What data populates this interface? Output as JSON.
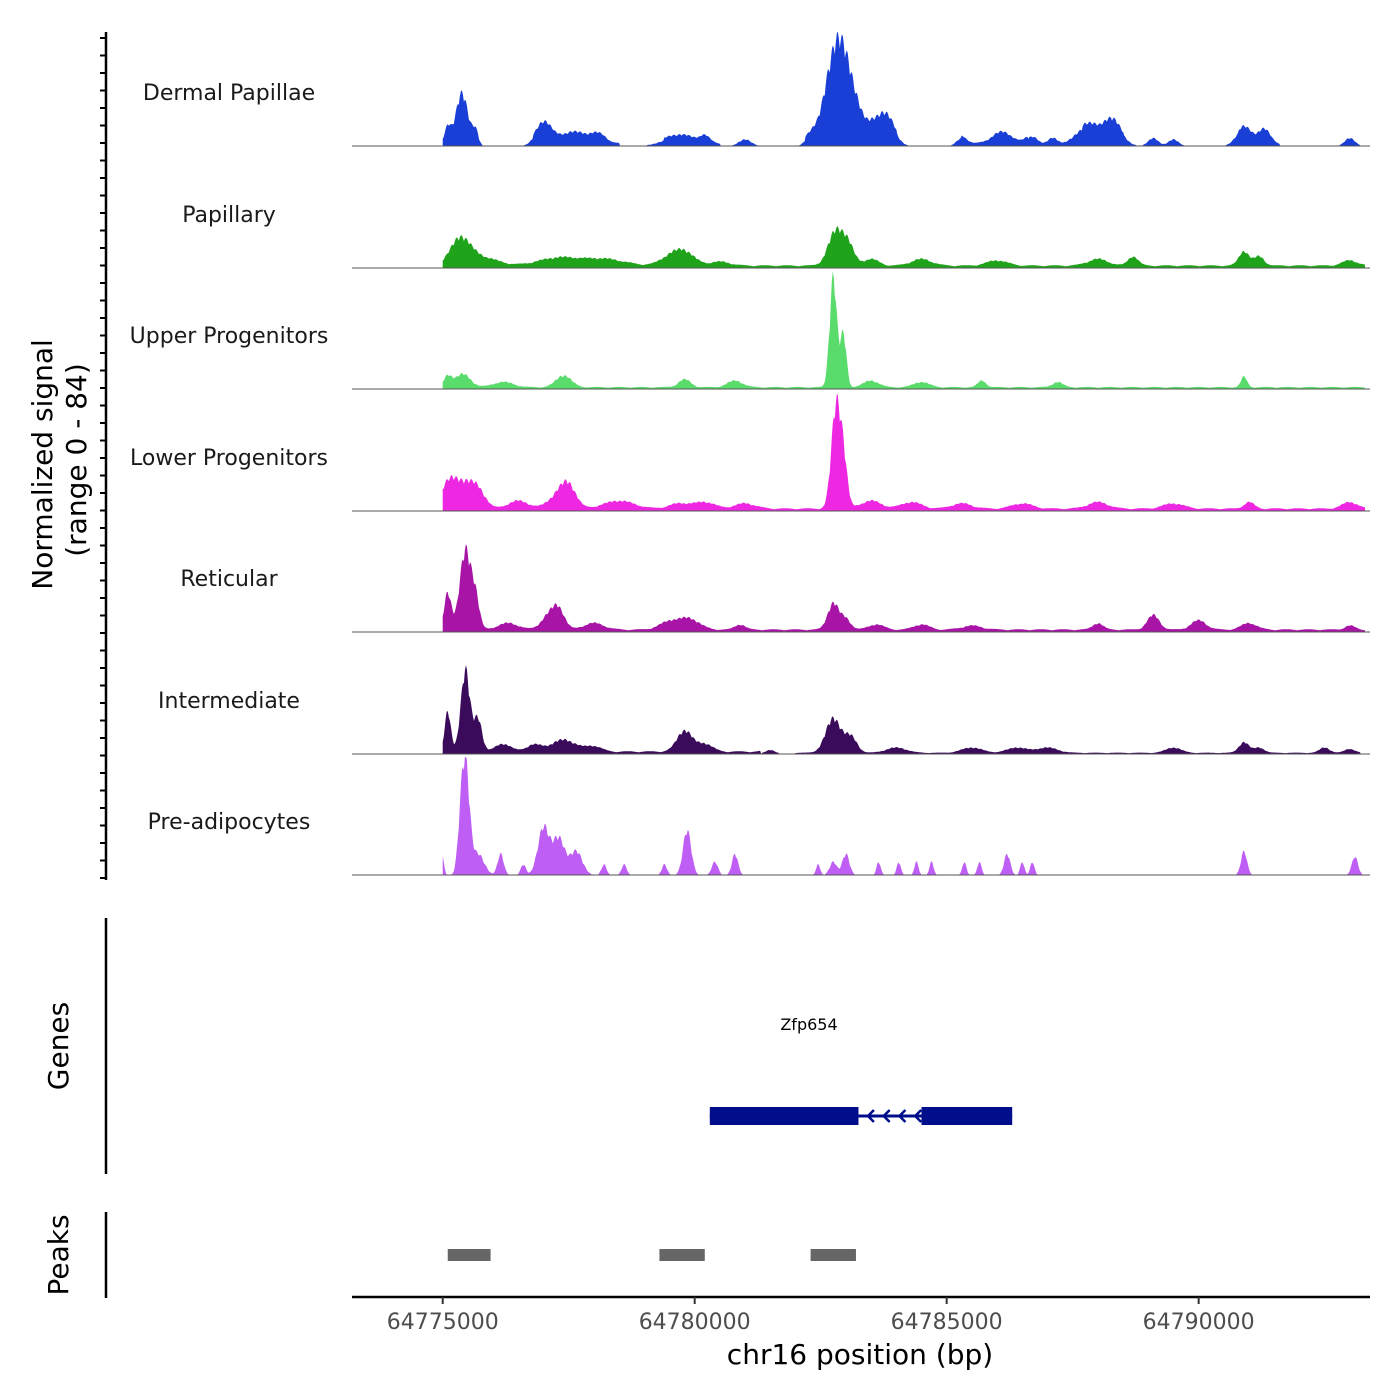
{
  "chart_data": {
    "type": "area",
    "chromosome": "chr16",
    "xlabel": "chr16 position (bp)",
    "xlim": [
      64773200,
      64793400
    ],
    "xticks": [
      64775000,
      64780000,
      64785000,
      64790000
    ],
    "xtick_labels": [
      "64775000",
      "64780000",
      "64785000",
      "64790000"
    ],
    "ylabel_line1": "Normalized signal",
    "ylabel_line2": "(range 0 - 84)",
    "ylim": [
      0,
      84
    ],
    "tracks": [
      {
        "name": "Dermal Papillae",
        "color": "#1a3fd6",
        "peaks": [
          [
            64775100,
            12,
            60
          ],
          [
            64775380,
            38,
            120
          ],
          [
            64775650,
            10,
            60
          ],
          [
            64777000,
            16,
            150
          ],
          [
            64777600,
            9,
            300
          ],
          [
            64778100,
            6,
            150
          ],
          [
            64779700,
            7,
            300
          ],
          [
            64780200,
            5,
            100
          ],
          [
            64781000,
            5,
            120
          ],
          [
            64782300,
            6,
            100
          ],
          [
            64782750,
            50,
            200
          ],
          [
            64782950,
            40,
            180
          ],
          [
            64783200,
            18,
            150
          ],
          [
            64783600,
            16,
            180
          ],
          [
            64783850,
            14,
            150
          ],
          [
            64785300,
            6,
            100
          ],
          [
            64786100,
            9,
            200
          ],
          [
            64786700,
            7,
            120
          ],
          [
            64787100,
            6,
            100
          ],
          [
            64787800,
            14,
            250
          ],
          [
            64788300,
            16,
            180
          ],
          [
            64789100,
            6,
            100
          ],
          [
            64789500,
            5,
            100
          ],
          [
            64790900,
            13,
            150
          ],
          [
            64791300,
            11,
            120
          ],
          [
            64793000,
            6,
            100
          ]
        ],
        "floor": [
          [
            64775000,
            64775700,
            2
          ],
          [
            64776800,
            64778500,
            2
          ],
          [
            64779400,
            64780500,
            2
          ],
          [
            64782200,
            64784000,
            3
          ],
          [
            64785300,
            64786600,
            2
          ],
          [
            64787700,
            64788500,
            3
          ],
          [
            64790800,
            64791600,
            2
          ]
        ]
      },
      {
        "name": "Papillary",
        "color": "#1fa31a",
        "peaks": [
          [
            64775350,
            20,
            200
          ],
          [
            64775800,
            6,
            300
          ],
          [
            64777300,
            6,
            400
          ],
          [
            64778200,
            5,
            400
          ],
          [
            64779800,
            10,
            200
          ],
          [
            64779500,
            6,
            200
          ],
          [
            64780500,
            3,
            200
          ],
          [
            64782800,
            26,
            150
          ],
          [
            64783050,
            14,
            120
          ],
          [
            64783500,
            5,
            150
          ],
          [
            64784500,
            5,
            200
          ],
          [
            64786000,
            4,
            200
          ],
          [
            64788000,
            5,
            200
          ],
          [
            64788700,
            7,
            100
          ],
          [
            64790900,
            11,
            100
          ],
          [
            64791200,
            7,
            100
          ],
          [
            64793000,
            4,
            150
          ]
        ],
        "floor": [
          [
            64775000,
            64793300,
            2
          ]
        ]
      },
      {
        "name": "Upper Progenitors",
        "color": "#5adc6c",
        "peaks": [
          [
            64775100,
            8,
            80
          ],
          [
            64775400,
            10,
            150
          ],
          [
            64776200,
            4,
            200
          ],
          [
            64777400,
            9,
            150
          ],
          [
            64779800,
            6,
            120
          ],
          [
            64780800,
            5,
            150
          ],
          [
            64782750,
            84,
            70
          ],
          [
            64782950,
            40,
            60
          ],
          [
            64783500,
            5,
            150
          ],
          [
            64784500,
            4,
            150
          ],
          [
            64785700,
            5,
            80
          ],
          [
            64787200,
            4,
            100
          ],
          [
            64790900,
            8,
            60
          ]
        ],
        "floor": [
          [
            64775000,
            64793300,
            1.5
          ]
        ]
      },
      {
        "name": "Lower Progenitors",
        "color": "#ee28e2",
        "peaks": [
          [
            64775100,
            16,
            150
          ],
          [
            64775400,
            18,
            200
          ],
          [
            64775700,
            12,
            150
          ],
          [
            64776500,
            6,
            200
          ],
          [
            64777300,
            10,
            200
          ],
          [
            64777500,
            14,
            150
          ],
          [
            64778500,
            6,
            300
          ],
          [
            64779700,
            4,
            200
          ],
          [
            64780200,
            5,
            200
          ],
          [
            64781000,
            4,
            200
          ],
          [
            64782800,
            75,
            90
          ],
          [
            64782950,
            35,
            80
          ],
          [
            64783500,
            6,
            200
          ],
          [
            64784300,
            5,
            200
          ],
          [
            64785300,
            4,
            200
          ],
          [
            64786500,
            4,
            200
          ],
          [
            64788000,
            5,
            200
          ],
          [
            64789500,
            4,
            200
          ],
          [
            64791000,
            5,
            100
          ],
          [
            64793000,
            5,
            150
          ]
        ],
        "floor": [
          [
            64775000,
            64793300,
            2
          ]
        ]
      },
      {
        "name": "Reticular",
        "color": "#a815a6",
        "peaks": [
          [
            64775100,
            28,
            70
          ],
          [
            64775450,
            60,
            110
          ],
          [
            64775650,
            22,
            80
          ],
          [
            64776300,
            5,
            200
          ],
          [
            64777100,
            10,
            150
          ],
          [
            64777300,
            14,
            120
          ],
          [
            64778000,
            5,
            200
          ],
          [
            64779500,
            6,
            200
          ],
          [
            64779900,
            8,
            200
          ],
          [
            64780900,
            4,
            100
          ],
          [
            64782750,
            20,
            110
          ],
          [
            64783000,
            8,
            100
          ],
          [
            64783600,
            4,
            150
          ],
          [
            64784500,
            4,
            150
          ],
          [
            64785500,
            3,
            200
          ],
          [
            64788000,
            5,
            100
          ],
          [
            64789100,
            11,
            120
          ],
          [
            64790000,
            7,
            150
          ],
          [
            64791000,
            5,
            150
          ],
          [
            64793000,
            3,
            100
          ]
        ],
        "floor": [
          [
            64775000,
            64793300,
            2
          ]
        ]
      },
      {
        "name": "Intermediate",
        "color": "#3b0b5b",
        "peaks": [
          [
            64775100,
            30,
            60
          ],
          [
            64775450,
            62,
            90
          ],
          [
            64775700,
            25,
            80
          ],
          [
            64776200,
            6,
            150
          ],
          [
            64776800,
            5,
            150
          ],
          [
            64777400,
            9,
            250
          ],
          [
            64778000,
            4,
            150
          ],
          [
            64779800,
            16,
            150
          ],
          [
            64780200,
            6,
            150
          ],
          [
            64781500,
            3,
            100
          ],
          [
            64782750,
            26,
            150
          ],
          [
            64783100,
            12,
            120
          ],
          [
            64784000,
            4,
            200
          ],
          [
            64785500,
            4,
            200
          ],
          [
            64786400,
            4,
            200
          ],
          [
            64787000,
            4,
            200
          ],
          [
            64789500,
            4,
            150
          ],
          [
            64790900,
            8,
            100
          ],
          [
            64791200,
            4,
            100
          ],
          [
            64792500,
            4,
            100
          ],
          [
            64793000,
            3,
            100
          ]
        ],
        "floor": [
          [
            64775000,
            64781300,
            2
          ],
          [
            64782000,
            64793200,
            1
          ]
        ]
      },
      {
        "name": "Pre-adipocytes",
        "color": "#bf5ef5",
        "peaks": [
          [
            64775000,
            14,
            30
          ],
          [
            64775350,
            20,
            60
          ],
          [
            64775450,
            84,
            80
          ],
          [
            64775700,
            16,
            120
          ],
          [
            64776150,
            16,
            60
          ],
          [
            64776600,
            8,
            50
          ],
          [
            64777000,
            36,
            110
          ],
          [
            64777300,
            28,
            120
          ],
          [
            64777650,
            18,
            120
          ],
          [
            64778200,
            8,
            50
          ],
          [
            64778600,
            8,
            50
          ],
          [
            64779400,
            8,
            50
          ],
          [
            64779850,
            34,
            80
          ],
          [
            64780400,
            10,
            60
          ],
          [
            64780800,
            16,
            60
          ],
          [
            64782450,
            8,
            40
          ],
          [
            64782750,
            10,
            70
          ],
          [
            64783000,
            16,
            70
          ],
          [
            64783650,
            10,
            40
          ],
          [
            64784050,
            10,
            40
          ],
          [
            64784400,
            10,
            40
          ],
          [
            64784700,
            10,
            40
          ],
          [
            64785350,
            10,
            40
          ],
          [
            64785650,
            10,
            40
          ],
          [
            64786200,
            16,
            60
          ],
          [
            64786500,
            10,
            40
          ],
          [
            64786700,
            10,
            40
          ],
          [
            64790900,
            18,
            60
          ],
          [
            64793100,
            14,
            60
          ]
        ],
        "floor": []
      }
    ],
    "genes": {
      "label": "Genes",
      "items": [
        {
          "name": "Zfp654",
          "strand": "-",
          "start": 64780300,
          "end": 64786300,
          "exons": [
            [
              64780300,
              64783250
            ],
            [
              64784500,
              64786300
            ]
          ],
          "color": "#000e8c"
        }
      ]
    },
    "peaks_track": {
      "label": "Peaks",
      "color": "#666666",
      "regions": [
        [
          64775100,
          64775950
        ],
        [
          64779300,
          64780200
        ],
        [
          64782300,
          64783200
        ]
      ]
    }
  }
}
